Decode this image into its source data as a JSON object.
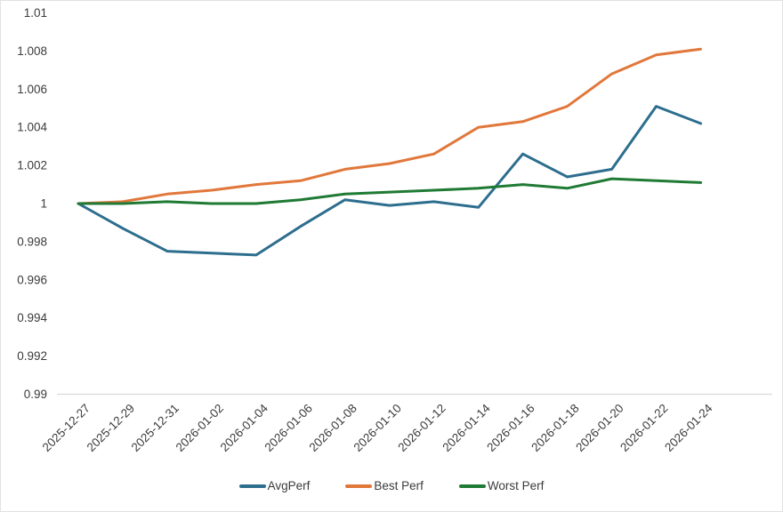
{
  "colors": {
    "background": "#ffffff",
    "axis_line": "#d9d9d9",
    "tick_text": "#3b3b3b",
    "avg_perf": "#2d6e8e",
    "best_perf": "#e1773b",
    "worst_perf": "#1f7a34"
  },
  "chart_data": {
    "type": "line",
    "title": "",
    "xlabel": "",
    "ylabel": "",
    "grid": false,
    "legend_position": "bottom",
    "ylim": [
      0.99,
      1.01
    ],
    "ytick_values": [
      1.01,
      1.008,
      1.006,
      1.004,
      1.002,
      1,
      0.998,
      0.996,
      0.994,
      0.992,
      0.99
    ],
    "ytick_labels": [
      "1.01",
      "1.008",
      "1.006",
      "1.004",
      "1.002",
      "1",
      "0.998",
      "0.996",
      "0.994",
      "0.992",
      "0.99"
    ],
    "x": [
      "2025-12-27",
      "2025-12-29",
      "2025-12-31",
      "2026-01-02",
      "2026-01-04",
      "2026-01-06",
      "2026-01-08",
      "2026-01-10",
      "2026-01-12",
      "2026-01-14",
      "2026-01-16",
      "2026-01-18",
      "2026-01-20",
      "2026-01-22",
      "2026-01-24"
    ],
    "series": [
      {
        "name": "AvgPerf",
        "color": "#2d6e8e",
        "values": [
          1.0,
          0.9987,
          0.9975,
          0.9974,
          0.9973,
          0.9988,
          1.0002,
          0.9999,
          1.0001,
          0.9998,
          1.0026,
          1.0014,
          1.0018,
          1.0051,
          1.0042
        ]
      },
      {
        "name": "Best Perf",
        "color": "#e1773b",
        "values": [
          1.0,
          1.0001,
          1.0005,
          1.0007,
          1.001,
          1.0012,
          1.0018,
          1.0021,
          1.0026,
          1.004,
          1.0043,
          1.0051,
          1.0068,
          1.0078,
          1.0081
        ]
      },
      {
        "name": "Worst Perf",
        "color": "#1f7a34",
        "values": [
          1.0,
          1.0,
          1.0001,
          1.0,
          1.0,
          1.0002,
          1.0005,
          1.0006,
          1.0007,
          1.0008,
          1.001,
          1.0008,
          1.0013,
          1.0012,
          1.0011
        ]
      }
    ]
  }
}
